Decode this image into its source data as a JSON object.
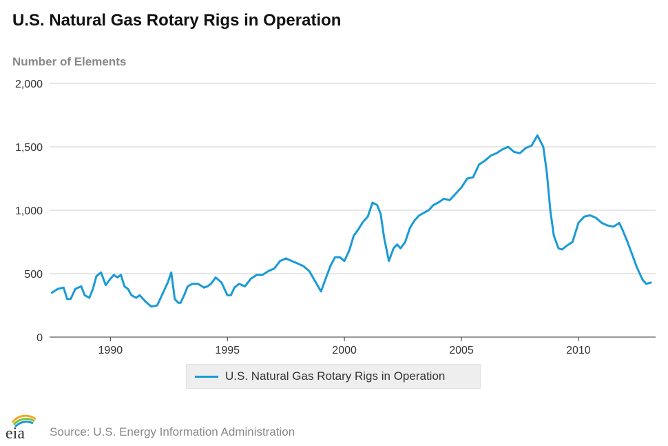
{
  "header": {
    "title": "U.S. Natural Gas Rotary Rigs in Operation",
    "y_axis_label": "Number of Elements"
  },
  "footer": {
    "source": "Source: U.S. Energy Information Administration",
    "logo_text": "eia"
  },
  "colors": {
    "line": "#1a9ad6",
    "grid": "#cccccc",
    "axis_text": "#333333"
  },
  "chart_data": {
    "type": "line",
    "title": "U.S. Natural Gas Rotary Rigs in Operation",
    "ylabel": "Number of Elements",
    "xlabel": "",
    "ylim": [
      0,
      2000
    ],
    "xlim": [
      1987.4,
      2013.3
    ],
    "y_ticks": [
      0,
      500,
      1000,
      1500,
      2000
    ],
    "y_tick_labels": [
      "0",
      "500",
      "1,000",
      "1,500",
      "2,000"
    ],
    "x_ticks": [
      1990,
      1995,
      2000,
      2005,
      2010
    ],
    "x_tick_labels": [
      "1990",
      "1995",
      "2000",
      "2005",
      "2010"
    ],
    "grid": true,
    "legend_position": "bottom",
    "series": [
      {
        "name": "U.S. Natural Gas Rotary Rigs in Operation",
        "x": [
          1987.5,
          1987.75,
          1988.0,
          1988.15,
          1988.3,
          1988.5,
          1988.75,
          1988.9,
          1989.1,
          1989.25,
          1989.4,
          1989.6,
          1989.8,
          1990.0,
          1990.15,
          1990.3,
          1990.45,
          1990.6,
          1990.75,
          1990.9,
          1991.1,
          1991.25,
          1991.5,
          1991.75,
          1992.0,
          1992.15,
          1992.3,
          1992.45,
          1992.6,
          1992.75,
          1992.9,
          1993.0,
          1993.15,
          1993.3,
          1993.5,
          1993.75,
          1994.0,
          1994.15,
          1994.3,
          1994.5,
          1994.75,
          1995.0,
          1995.15,
          1995.3,
          1995.5,
          1995.75,
          1996.0,
          1996.25,
          1996.5,
          1996.75,
          1997.0,
          1997.25,
          1997.5,
          1997.75,
          1998.0,
          1998.25,
          1998.5,
          1998.75,
          1999.0,
          1999.2,
          1999.4,
          1999.6,
          1999.8,
          2000.0,
          2000.2,
          2000.4,
          2000.6,
          2000.8,
          2001.0,
          2001.2,
          2001.4,
          2001.55,
          2001.7,
          2001.9,
          2002.1,
          2002.25,
          2002.4,
          2002.6,
          2002.8,
          2003.0,
          2003.2,
          2003.4,
          2003.6,
          2003.8,
          2004.0,
          2004.25,
          2004.5,
          2004.75,
          2005.0,
          2005.25,
          2005.5,
          2005.75,
          2006.0,
          2006.25,
          2006.5,
          2006.75,
          2007.0,
          2007.25,
          2007.5,
          2007.75,
          2008.0,
          2008.25,
          2008.5,
          2008.65,
          2008.8,
          2008.95,
          2009.05,
          2009.15,
          2009.3,
          2009.5,
          2009.75,
          2010.0,
          2010.25,
          2010.5,
          2010.75,
          2011.0,
          2011.25,
          2011.5,
          2011.75,
          2011.9,
          2012.1,
          2012.3,
          2012.5,
          2012.75,
          2012.9,
          2013.1
        ],
        "values": [
          350,
          380,
          390,
          300,
          300,
          380,
          400,
          330,
          310,
          380,
          480,
          510,
          410,
          460,
          490,
          470,
          490,
          400,
          380,
          330,
          310,
          330,
          280,
          240,
          250,
          310,
          370,
          430,
          510,
          300,
          270,
          270,
          330,
          400,
          420,
          420,
          390,
          400,
          420,
          470,
          430,
          330,
          330,
          390,
          420,
          400,
          460,
          490,
          490,
          520,
          540,
          600,
          620,
          600,
          580,
          560,
          520,
          440,
          360,
          460,
          560,
          630,
          630,
          600,
          680,
          800,
          850,
          910,
          950,
          1060,
          1040,
          970,
          780,
          600,
          700,
          730,
          700,
          750,
          860,
          920,
          960,
          980,
          1000,
          1040,
          1060,
          1090,
          1080,
          1130,
          1180,
          1250,
          1260,
          1360,
          1390,
          1430,
          1450,
          1480,
          1500,
          1460,
          1450,
          1490,
          1510,
          1590,
          1500,
          1300,
          1000,
          800,
          750,
          700,
          690,
          720,
          750,
          900,
          950,
          960,
          940,
          900,
          880,
          870,
          900,
          840,
          750,
          650,
          550,
          450,
          420,
          430
        ]
      }
    ]
  },
  "legend": {
    "label": "U.S. Natural Gas Rotary Rigs in Operation"
  }
}
